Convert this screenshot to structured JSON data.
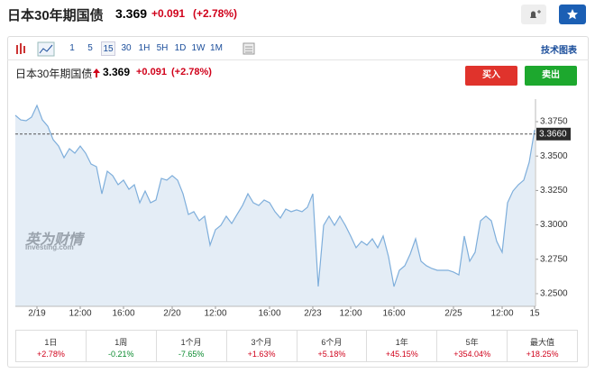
{
  "header": {
    "title": "日本30年期国债",
    "price": "3.369",
    "change": "+0.091",
    "change_pct": "(+2.78%)"
  },
  "toolbar": {
    "intervals": [
      "1",
      "5",
      "15",
      "30",
      "1H",
      "5H",
      "1D",
      "1W",
      "1M"
    ],
    "advanced_chart": "技术图表"
  },
  "quote": {
    "title": "日本30年期国债",
    "price": "3.369",
    "change": "+0.091",
    "change_pct": "(+2.78%)",
    "buy": "买入",
    "sell": "卖出"
  },
  "watermark": {
    "brand": "英为财情",
    "site": "Investing.com"
  },
  "performance": [
    {
      "period": "1日",
      "change": "+2.78%"
    },
    {
      "period": "1周",
      "change": "-0.21%"
    },
    {
      "period": "1个月",
      "change": "-7.65%"
    },
    {
      "period": "3个月",
      "change": "+1.63%"
    },
    {
      "period": "6个月",
      "change": "+5.18%"
    },
    {
      "period": "1年",
      "change": "+45.15%"
    },
    {
      "period": "5年",
      "change": "+354.04%"
    },
    {
      "period": "最大值",
      "change": "+18.25%"
    }
  ],
  "chart_data": {
    "type": "area",
    "color": "#7eaedb",
    "fill_color": "#e4edf6",
    "categories": [
      null,
      null,
      null,
      null,
      "2/19",
      null,
      null,
      null,
      null,
      null,
      null,
      null,
      "12:00",
      null,
      null,
      null,
      null,
      null,
      null,
      null,
      "16:00",
      null,
      null,
      null,
      null,
      null,
      null,
      null,
      null,
      "2/20",
      null,
      null,
      null,
      null,
      null,
      null,
      null,
      "12:00",
      null,
      null,
      null,
      null,
      null,
      null,
      null,
      null,
      null,
      "16:00",
      null,
      null,
      null,
      null,
      null,
      null,
      null,
      "2/23",
      null,
      null,
      null,
      null,
      null,
      null,
      "12:00",
      null,
      null,
      null,
      null,
      null,
      null,
      null,
      "16:00",
      null,
      null,
      null,
      null,
      null,
      null,
      null,
      null,
      null,
      null,
      "2/25",
      null,
      null,
      null,
      null,
      null,
      null,
      null,
      null,
      "12:00",
      null,
      null,
      null,
      null,
      null,
      "15"
    ],
    "values": [
      3.3796,
      3.3763,
      3.3757,
      3.3783,
      3.3868,
      3.3763,
      3.3717,
      3.3619,
      3.3573,
      3.3488,
      3.3554,
      3.3521,
      3.3573,
      3.3521,
      3.3442,
      3.3423,
      3.3226,
      3.339,
      3.3358,
      3.3292,
      3.3325,
      3.3259,
      3.3292,
      3.3161,
      3.3246,
      3.3161,
      3.3181,
      3.3338,
      3.3325,
      3.3358,
      3.3325,
      3.3226,
      3.3076,
      3.3096,
      3.303,
      3.3063,
      3.2853,
      3.2965,
      3.2997,
      3.3063,
      3.301,
      3.3076,
      3.3141,
      3.3226,
      3.3161,
      3.3141,
      3.3181,
      3.3161,
      3.3096,
      3.305,
      3.3115,
      3.3096,
      3.3109,
      3.3096,
      3.3128,
      3.3226,
      3.2552,
      3.2997,
      3.3063,
      3.2997,
      3.3063,
      3.2997,
      3.2919,
      3.2834,
      3.288,
      3.2853,
      3.2899,
      3.2834,
      3.2919,
      3.2768,
      3.2552,
      3.267,
      3.2703,
      3.2788,
      3.2899,
      3.2736,
      3.2703,
      3.2683,
      3.267,
      3.267,
      3.267,
      3.2657,
      3.2637,
      3.2919,
      3.2736,
      3.2801,
      3.303,
      3.3063,
      3.303,
      3.288,
      3.2801,
      3.3161,
      3.3246,
      3.3292,
      3.3325,
      3.3455,
      3.369
    ],
    "ylim": [
      3.2408,
      3.3914
    ],
    "yticks": [
      {
        "value": 3.25,
        "label": "3.2500"
      },
      {
        "value": 3.275,
        "label": "3.2750"
      },
      {
        "value": 3.3,
        "label": "3.3000"
      },
      {
        "value": 3.325,
        "label": "3.3250"
      },
      {
        "value": 3.35,
        "label": "3.3500"
      },
      {
        "value": 3.375,
        "label": "3.3750"
      }
    ],
    "reference_line": {
      "value": 3.366,
      "label": "3.3660"
    }
  }
}
